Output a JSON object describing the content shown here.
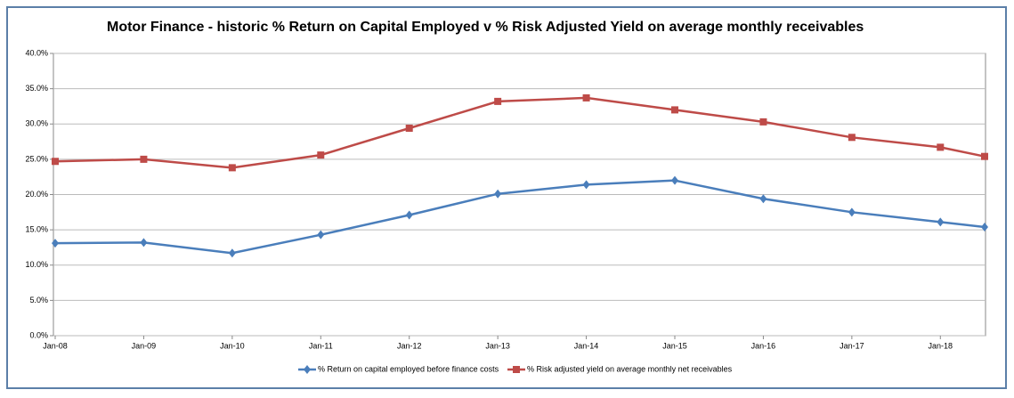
{
  "chart_data": {
    "type": "line",
    "title": "Motor Finance - historic % Return on Capital Employed v % Risk Adjusted Yield on average monthly receivables",
    "x": [
      2008,
      2009,
      2010,
      2011,
      2012,
      2013,
      2014,
      2015,
      2016,
      2017,
      2018,
      2018.5
    ],
    "xlim": [
      2008,
      2018.5
    ],
    "xticks": [
      {
        "value": 2008,
        "label": "Jan-08"
      },
      {
        "value": 2009,
        "label": "Jan-09"
      },
      {
        "value": 2010,
        "label": "Jan-10"
      },
      {
        "value": 2011,
        "label": "Jan-11"
      },
      {
        "value": 2012,
        "label": "Jan-12"
      },
      {
        "value": 2013,
        "label": "Jan-13"
      },
      {
        "value": 2014,
        "label": "Jan-14"
      },
      {
        "value": 2015,
        "label": "Jan-15"
      },
      {
        "value": 2016,
        "label": "Jan-16"
      },
      {
        "value": 2017,
        "label": "Jan-17"
      },
      {
        "value": 2018,
        "label": "Jan-18"
      }
    ],
    "ylim": [
      0,
      40
    ],
    "yticks": [
      {
        "value": 0,
        "label": "0.0%"
      },
      {
        "value": 5,
        "label": "5.0%"
      },
      {
        "value": 10,
        "label": "10.0%"
      },
      {
        "value": 15,
        "label": "15.0%"
      },
      {
        "value": 20,
        "label": "20.0%"
      },
      {
        "value": 25,
        "label": "25.0%"
      },
      {
        "value": 30,
        "label": "30.0%"
      },
      {
        "value": 35,
        "label": "35.0%"
      },
      {
        "value": 40,
        "label": "40.0%"
      }
    ],
    "grid": true,
    "legend": "bottom",
    "series": [
      {
        "name": "% Return on capital employed before finance costs",
        "color": "#4a7ebb",
        "marker": "diamond",
        "values": [
          13.1,
          13.2,
          11.7,
          14.3,
          17.1,
          20.1,
          21.4,
          22.0,
          19.4,
          17.5,
          16.1,
          15.4
        ]
      },
      {
        "name": "% Risk adjusted yield on average monthly net receivables",
        "color": "#be4b48",
        "marker": "square",
        "values": [
          24.7,
          25.0,
          23.8,
          25.6,
          29.4,
          33.2,
          33.7,
          32.0,
          30.3,
          28.1,
          26.7,
          25.4
        ]
      }
    ]
  }
}
